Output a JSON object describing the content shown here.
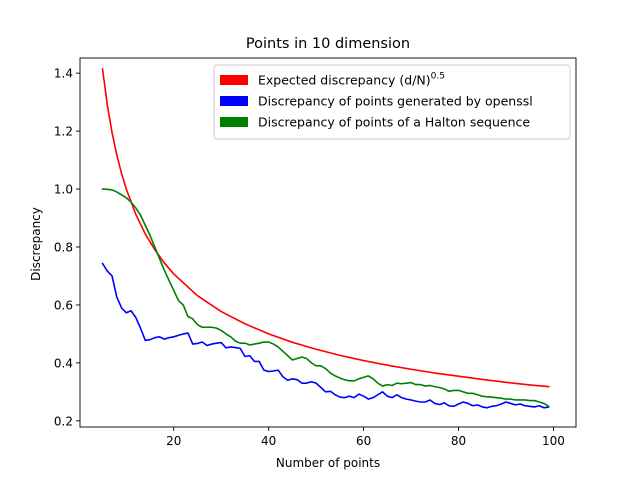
{
  "chart_data": {
    "type": "line",
    "title": "Points in 10 dimension",
    "xlabel": "Number of points",
    "ylabel": "Discrepancy",
    "xlim": [
      0.25,
      104.75
    ],
    "ylim": [
      0.1787,
      1.4523
    ],
    "xticks": [
      20,
      40,
      60,
      80,
      100
    ],
    "yticks": [
      0.2,
      0.4,
      0.6,
      0.8,
      1.0,
      1.2,
      1.4
    ],
    "ytick_labels": [
      "0.2",
      "0.4",
      "0.6",
      "0.8",
      "1.0",
      "1.2",
      "1.4"
    ],
    "grid": false,
    "legend_position": "top-right",
    "series": [
      {
        "name": "expected",
        "legend_label": "Expected discrepancy (d/N)",
        "legend_superscript": "0.5",
        "color": "#ff0000",
        "formula": "sqrt(10/N)",
        "x": [
          5,
          6,
          7,
          8,
          9,
          10,
          12,
          14,
          16,
          18,
          20,
          25,
          30,
          35,
          40,
          45,
          50,
          55,
          60,
          65,
          70,
          75,
          80,
          85,
          90,
          95,
          99
        ],
        "y": [
          1.414,
          1.291,
          1.195,
          1.118,
          1.054,
          1.0,
          0.913,
          0.845,
          0.791,
          0.745,
          0.707,
          0.632,
          0.577,
          0.535,
          0.5,
          0.471,
          0.447,
          0.426,
          0.408,
          0.392,
          0.378,
          0.365,
          0.354,
          0.343,
          0.333,
          0.324,
          0.318
        ]
      },
      {
        "name": "openssl",
        "legend_label": "Discrepancy of points generated by openssl",
        "color": "#0000ff",
        "x": [
          5,
          6,
          7,
          8,
          9,
          10,
          11,
          12,
          13,
          14,
          15,
          16,
          17,
          18,
          19,
          20,
          21,
          22,
          23,
          24,
          25,
          26,
          27,
          28,
          29,
          30,
          31,
          32,
          33,
          34,
          35,
          36,
          37,
          38,
          39,
          40,
          41,
          42,
          43,
          44,
          45,
          46,
          47,
          48,
          49,
          50,
          51,
          52,
          53,
          54,
          55,
          56,
          57,
          58,
          59,
          60,
          61,
          62,
          63,
          64,
          65,
          66,
          67,
          68,
          69,
          70,
          71,
          72,
          73,
          74,
          75,
          76,
          77,
          78,
          79,
          80,
          81,
          82,
          83,
          84,
          85,
          86,
          87,
          88,
          89,
          90,
          91,
          92,
          93,
          94,
          95,
          96,
          97,
          98,
          99
        ],
        "y": [
          0.743,
          0.717,
          0.7,
          0.627,
          0.59,
          0.573,
          0.58,
          0.557,
          0.52,
          0.478,
          0.48,
          0.487,
          0.49,
          0.482,
          0.487,
          0.49,
          0.495,
          0.5,
          0.503,
          0.465,
          0.467,
          0.472,
          0.46,
          0.465,
          0.468,
          0.47,
          0.452,
          0.455,
          0.453,
          0.45,
          0.422,
          0.425,
          0.405,
          0.405,
          0.375,
          0.37,
          0.372,
          0.375,
          0.352,
          0.34,
          0.345,
          0.342,
          0.33,
          0.33,
          0.335,
          0.33,
          0.315,
          0.3,
          0.302,
          0.29,
          0.282,
          0.28,
          0.285,
          0.28,
          0.292,
          0.285,
          0.275,
          0.28,
          0.29,
          0.3,
          0.285,
          0.28,
          0.29,
          0.28,
          0.275,
          0.272,
          0.268,
          0.265,
          0.265,
          0.272,
          0.26,
          0.256,
          0.262,
          0.252,
          0.25,
          0.258,
          0.265,
          0.26,
          0.252,
          0.255,
          0.248,
          0.245,
          0.25,
          0.252,
          0.258,
          0.265,
          0.26,
          0.255,
          0.258,
          0.252,
          0.25,
          0.248,
          0.252,
          0.245,
          0.248
        ]
      },
      {
        "name": "halton",
        "legend_label": "Discrepancy of points of a Halton sequence",
        "color": "#008000",
        "x": [
          5,
          6,
          7,
          8,
          9,
          10,
          11,
          12,
          13,
          14,
          15,
          16,
          17,
          18,
          19,
          20,
          21,
          22,
          23,
          24,
          25,
          26,
          27,
          28,
          29,
          30,
          31,
          32,
          33,
          34,
          35,
          36,
          37,
          38,
          39,
          40,
          41,
          42,
          43,
          44,
          45,
          46,
          47,
          48,
          49,
          50,
          51,
          52,
          53,
          54,
          55,
          56,
          57,
          58,
          59,
          60,
          61,
          62,
          63,
          64,
          65,
          66,
          67,
          68,
          69,
          70,
          71,
          72,
          73,
          74,
          75,
          76,
          77,
          78,
          79,
          80,
          81,
          82,
          83,
          84,
          85,
          86,
          87,
          88,
          89,
          90,
          91,
          92,
          93,
          94,
          95,
          96,
          97,
          98,
          99
        ],
        "y": [
          1.0,
          0.999,
          0.997,
          0.99,
          0.98,
          0.97,
          0.955,
          0.935,
          0.91,
          0.875,
          0.84,
          0.8,
          0.76,
          0.72,
          0.685,
          0.65,
          0.615,
          0.6,
          0.56,
          0.552,
          0.532,
          0.523,
          0.523,
          0.523,
          0.52,
          0.512,
          0.5,
          0.49,
          0.475,
          0.468,
          0.468,
          0.462,
          0.465,
          0.468,
          0.472,
          0.472,
          0.465,
          0.455,
          0.44,
          0.425,
          0.41,
          0.415,
          0.42,
          0.415,
          0.4,
          0.39,
          0.39,
          0.38,
          0.365,
          0.355,
          0.348,
          0.342,
          0.338,
          0.338,
          0.345,
          0.35,
          0.355,
          0.345,
          0.33,
          0.32,
          0.325,
          0.322,
          0.33,
          0.328,
          0.33,
          0.332,
          0.325,
          0.325,
          0.32,
          0.322,
          0.318,
          0.315,
          0.31,
          0.302,
          0.305,
          0.305,
          0.3,
          0.295,
          0.295,
          0.29,
          0.285,
          0.283,
          0.282,
          0.28,
          0.278,
          0.275,
          0.275,
          0.272,
          0.272,
          0.272,
          0.27,
          0.27,
          0.265,
          0.26,
          0.25
        ]
      }
    ]
  }
}
